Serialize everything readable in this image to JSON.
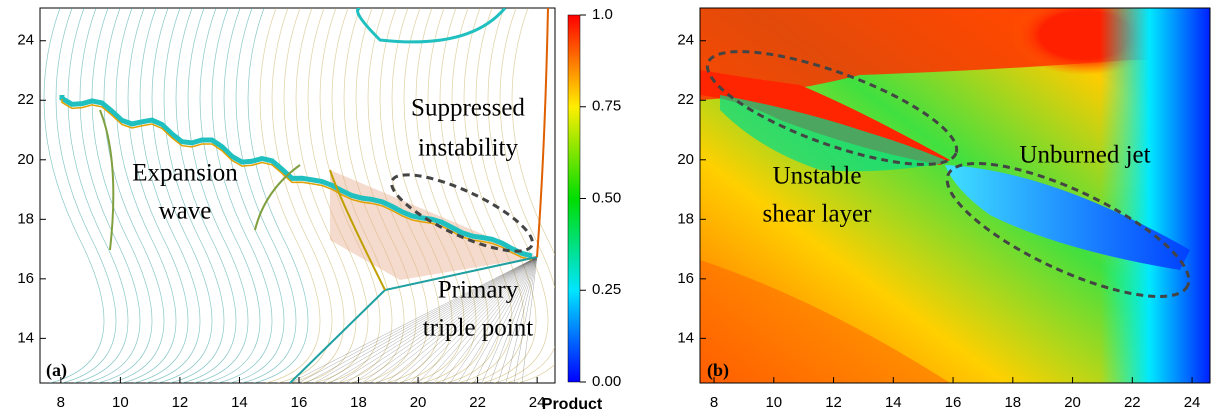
{
  "chart_data": [
    {
      "type": "contour",
      "panel_label": "(a)",
      "xlim": [
        7.3,
        24.6
      ],
      "xticks": [
        8,
        10,
        12,
        14,
        16,
        18,
        20,
        22,
        24
      ],
      "ylim": [
        12.5,
        25.1
      ],
      "yticks": [
        14,
        16,
        18,
        20,
        22,
        24
      ],
      "annotations": [
        [
          "Suppressed",
          "instability"
        ],
        [
          "Expansion",
          "wave"
        ],
        [
          "Primary",
          "triple point"
        ]
      ],
      "colorbar": {
        "label": "Product",
        "clim": [
          0,
          1
        ],
        "ticks": [
          {
            "value": 1,
            "label": "1.0"
          },
          {
            "value": 0.75,
            "label": "0.75"
          },
          {
            "value": 0.5,
            "label": "0.50"
          },
          {
            "value": 0.25,
            "label": "0.25"
          },
          {
            "value": 0,
            "label": "0.00"
          }
        ],
        "colormap": [
          "#0000ff",
          "#00e5ff",
          "#00dd00",
          "#ffee00",
          "#ff0000"
        ]
      }
    },
    {
      "type": "heatmap",
      "panel_label": "(b)",
      "xlim": [
        7.53,
        24.6
      ],
      "xticks": [
        8,
        10,
        12,
        14,
        16,
        18,
        20,
        22,
        24
      ],
      "ylim": [
        12.5,
        25.1
      ],
      "yticks": [
        14,
        16,
        18,
        20,
        22,
        24
      ],
      "annotations": [
        [
          "Unburned jet"
        ],
        [
          "Unstable",
          "shear layer"
        ]
      ]
    }
  ]
}
